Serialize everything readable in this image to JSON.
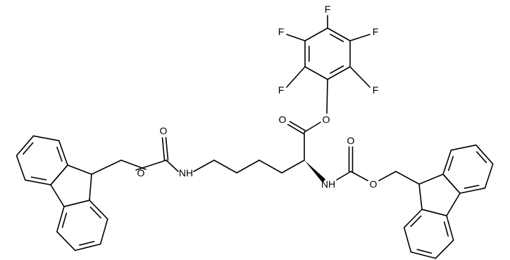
{
  "atoms": [
    {
      "label": "F"
    },
    {
      "label": "F"
    },
    {
      "label": "F"
    },
    {
      "label": "F"
    },
    {
      "label": "F"
    },
    {
      "label": "O"
    },
    {
      "label": "O"
    },
    {
      "label": "NH"
    },
    {
      "label": "O"
    },
    {
      "label": "O"
    },
    {
      "label": "NH"
    },
    {
      "label": "O"
    },
    {
      "label": "O"
    }
  ]
}
